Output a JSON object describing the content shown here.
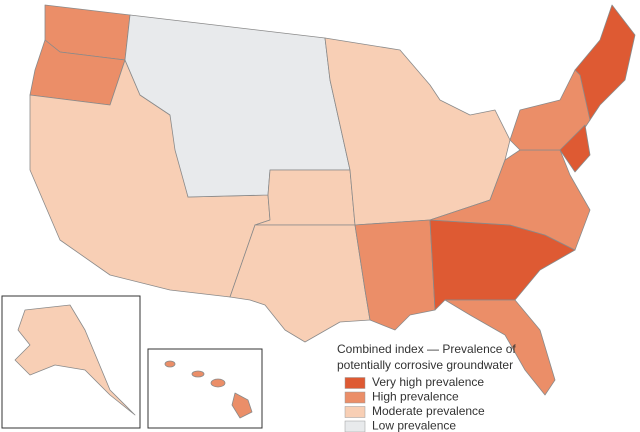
{
  "legend": {
    "title_lines": [
      "Combined index — Prevalence of",
      "potentially corrosive groundwater"
    ],
    "items": [
      {
        "label": "Very high prevalence",
        "color": "#de5a33"
      },
      {
        "label": "High prevalence",
        "color": "#eb8e68"
      },
      {
        "label": "Moderate prevalence",
        "color": "#f8cfb5"
      },
      {
        "label": "Low prevalence",
        "color": "#e8eaec"
      }
    ]
  }
}
